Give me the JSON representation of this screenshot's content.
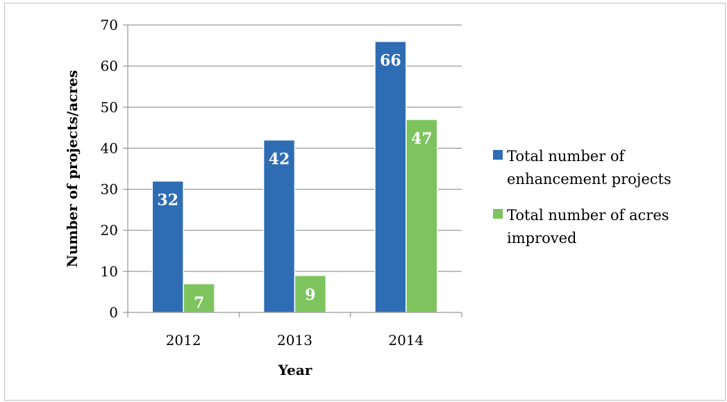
{
  "chart_data": {
    "type": "bar",
    "categories": [
      "2012",
      "2013",
      "2014"
    ],
    "series": [
      {
        "name": "Total number of enhancement projects",
        "legend_lines": [
          "Total number of",
          "enhancement projects"
        ],
        "values": [
          32,
          42,
          66
        ],
        "color": "#2e6db4"
      },
      {
        "name": "Total number of acres improved",
        "legend_lines": [
          "Total number of acres",
          "improved"
        ],
        "values": [
          7,
          9,
          47
        ],
        "color": "#7dc45f"
      }
    ],
    "xlabel": "Year",
    "ylabel": "Number of projects/acres",
    "ylim": [
      0,
      70
    ],
    "yticks": [
      0,
      10,
      20,
      30,
      40,
      50,
      60,
      70
    ],
    "grid": true,
    "legend_position": "right",
    "data_labels": true
  }
}
